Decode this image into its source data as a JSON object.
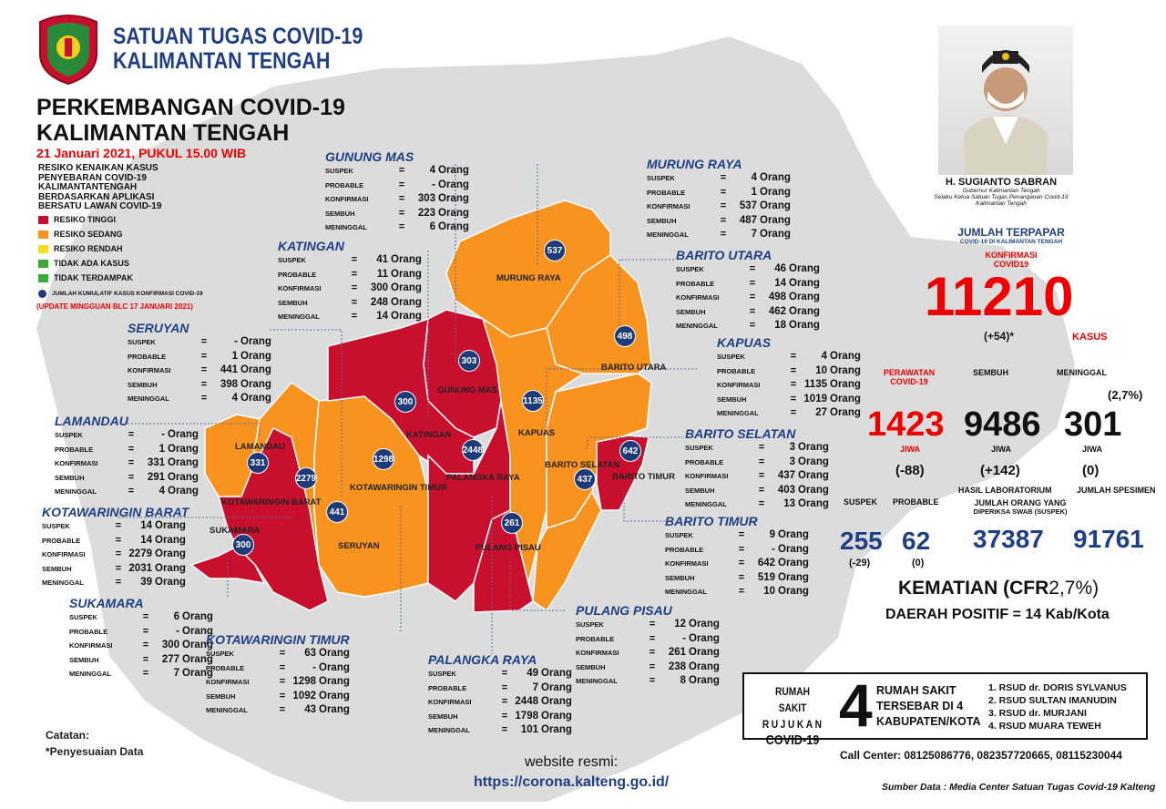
{
  "header": {
    "org_line1": "SATUAN TUGAS COVID-19",
    "org_line2": "KALIMANTAN TENGAH",
    "title_line1": "PERKEMBANGAN COVID-19",
    "title_line2": "KALIMANTAN TENGAH",
    "date": "21 Januari 2021, PUKUL 15.00 WIB"
  },
  "legend": {
    "title_lines": [
      "RESIKO KENAIKAN KASUS",
      "PENYEBARAN COVID-19",
      "KALIMANTANTENGAH",
      "BERDASARKAN APLIKASI",
      "BERSATU LAWAN COVID-19"
    ],
    "items": [
      {
        "label": "RESIKO TINGGI",
        "color": "#c8102e"
      },
      {
        "label": "RESIKO SEDANG",
        "color": "#f7931e"
      },
      {
        "label": "RESIKO RENDAH",
        "color": "#f2e01c"
      },
      {
        "label": "TIDAK ADA KASUS",
        "color": "#3aa935"
      },
      {
        "label": "TIDAK TERDAMPAK",
        "color": "#3aa935"
      }
    ],
    "dot_label": "JUMLAH KUMULATIF KASUS KONFIRMASI COVID-19",
    "update": "(UPDATE MINGGUAN BLC 17 JANUARI 2021)"
  },
  "colors": {
    "high": "#c8102e",
    "medium": "#f7931e",
    "map_bg": "#dcdcdc",
    "marker": "#1e3a78",
    "title_blue": "#1f3f84"
  },
  "stat_labels": {
    "suspek": "SUSPEK",
    "probable": "PROBABLE",
    "konfirmasi": "KONFIRMASI",
    "sembuh": "SEMBUH",
    "meninggal": "MENINGGAL",
    "eq": "=",
    "unit": "Orang"
  },
  "regions": [
    {
      "name": "GUNUNG MAS",
      "suspek": "4",
      "probable": "-",
      "konfirmasi": "303",
      "sembuh": "223",
      "meninggal": "6"
    },
    {
      "name": "MURUNG RAYA",
      "suspek": "4",
      "probable": "1",
      "konfirmasi": "537",
      "sembuh": "487",
      "meninggal": "7"
    },
    {
      "name": "KATINGAN",
      "suspek": "41",
      "probable": "11",
      "konfirmasi": "300",
      "sembuh": "248",
      "meninggal": "14"
    },
    {
      "name": "BARITO UTARA",
      "suspek": "46",
      "probable": "14",
      "konfirmasi": "498",
      "sembuh": "462",
      "meninggal": "18"
    },
    {
      "name": "SERUYAN",
      "suspek": "-",
      "probable": "1",
      "konfirmasi": "441",
      "sembuh": "398",
      "meninggal": "4"
    },
    {
      "name": "KAPUAS",
      "suspek": "4",
      "probable": "10",
      "konfirmasi": "1135",
      "sembuh": "1019",
      "meninggal": "27"
    },
    {
      "name": "LAMANDAU",
      "suspek": "-",
      "probable": "1",
      "konfirmasi": "331",
      "sembuh": "291",
      "meninggal": "4"
    },
    {
      "name": "BARITO SELATAN",
      "suspek": "3",
      "probable": "3",
      "konfirmasi": "437",
      "sembuh": "403",
      "meninggal": "13"
    },
    {
      "name": "KOTAWARINGIN BARAT",
      "suspek": "14",
      "probable": "14",
      "konfirmasi": "2279",
      "sembuh": "2031",
      "meninggal": "39"
    },
    {
      "name": "BARITO TIMUR",
      "suspek": "9",
      "probable": "-",
      "konfirmasi": "642",
      "sembuh": "519",
      "meninggal": "10"
    },
    {
      "name": "SUKAMARA",
      "suspek": "6",
      "probable": "-",
      "konfirmasi": "300",
      "sembuh": "277",
      "meninggal": "7"
    },
    {
      "name": "PULANG PISAU",
      "suspek": "12",
      "probable": "-",
      "konfirmasi": "261",
      "sembuh": "238",
      "meninggal": "8"
    },
    {
      "name": "KOTAWARINGIN TIMUR",
      "suspek": "63",
      "probable": "-",
      "konfirmasi": "1298",
      "sembuh": "1092",
      "meninggal": "43"
    },
    {
      "name": "PALANGKA RAYA",
      "suspek": "49",
      "probable": "7",
      "konfirmasi": "2448",
      "sembuh": "1798",
      "meninggal": "101"
    }
  ],
  "markers": [
    {
      "value": "537",
      "label": "MURUNG RAYA"
    },
    {
      "value": "498",
      "label": "BARITO UTARA"
    },
    {
      "value": "303",
      "label": "GUNUNG MAS"
    },
    {
      "value": "300",
      "label": "KATINGAN"
    },
    {
      "value": "1135",
      "label": "KAPUAS"
    },
    {
      "value": "1298",
      "label": "KOTAWARINGIN TIMUR"
    },
    {
      "value": "2448",
      "label": "PALANGKA RAYA"
    },
    {
      "value": "642",
      "label": "BARITO TIMUR"
    },
    {
      "value": "437",
      "label": "BARITO SELATAN"
    },
    {
      "value": "331",
      "label": "LAMANDAU"
    },
    {
      "value": "2279",
      "label": "KOTAWARINGIN BARAT"
    },
    {
      "value": "441",
      "label": "SERUYAN"
    },
    {
      "value": "261",
      "label": "PULANG PISAU"
    },
    {
      "value": "300",
      "label": "SUKAMARA"
    }
  ],
  "governor": {
    "name": "H. SUGIANTO SABRAN",
    "title1": "Gubernur Kalimantan Tengah",
    "title2": "Selaku Ketua Satuan Tugas Penanganan Covid-19",
    "title3": "Kalimantan Tengah"
  },
  "summary": {
    "terpapar_title": "JUMLAH TERPAPAR",
    "terpapar_sub": "COVID-19 DI KALIMANTAN TENGAH",
    "konfirmasi_label1": "KONFIRMASI",
    "konfirmasi_label2": "COVID19",
    "konfirmasi_value": "11210",
    "konfirmasi_delta": "(+54)*",
    "kasus": "KASUS",
    "perawatan_label1": "PERAWATAN",
    "perawatan_label2": "COVID-19",
    "sembuh_label": "SEMBUH",
    "meninggal_label": "MENINGGAL",
    "cfr_small": "(2,7%)",
    "perawatan_value": "1423",
    "sembuh_value": "9486",
    "meninggal_value": "301",
    "jiwa": "JIWA",
    "perawatan_delta": "(-88)",
    "sembuh_delta": "(+142)",
    "meninggal_delta": "(0)",
    "suspek_label": "SUSPEK",
    "probable_label": "PROBABLE",
    "lab_label": "HASIL LABORATORIUM",
    "spesimen_label": "JUMLAH SPESIMEN",
    "swab_label1": "JUMLAH ORANG YANG",
    "swab_label2": "DIPERIKSA SWAB (SUSPEK)",
    "suspek_value": "255",
    "probable_value": "62",
    "swab_value": "37387",
    "spesimen_value": "91761",
    "suspek_delta": "(-29)",
    "probable_delta": "(0)",
    "kematian": "KEMATIAN (CFR",
    "kematian_val": "2,7%)",
    "daerah": "DAERAH POSITIF = 14 Kab/Kota"
  },
  "hospitals": {
    "label1": "RUMAH SAKIT",
    "label2": "RUJUKAN",
    "label3": "COVID-19",
    "count": "4",
    "desc1": "RUMAH SAKIT",
    "desc2": "TERSEBAR DI 4",
    "desc3": "KABUPATEN/KOTA",
    "list": [
      "1. RSUD dr. DORIS SYLVANUS",
      "2. RSUD SULTAN IMANUDIN",
      "3. RSUD dr. MURJANI",
      "4. RSUD MUARA TEWEH"
    ]
  },
  "footer": {
    "call_center_label": "Call Center",
    "call_center_numbers": ": 08125086776, 082357720665, 08115230044",
    "source": "Sumber Data : Media Center Satuan Tugas Covid-19 Kalteng",
    "note_title": "Catatan:",
    "note_text": "*Penyesuaian Data",
    "website_label": "website resmi:",
    "website_url": "https://corona.kalteng.go.id/"
  }
}
